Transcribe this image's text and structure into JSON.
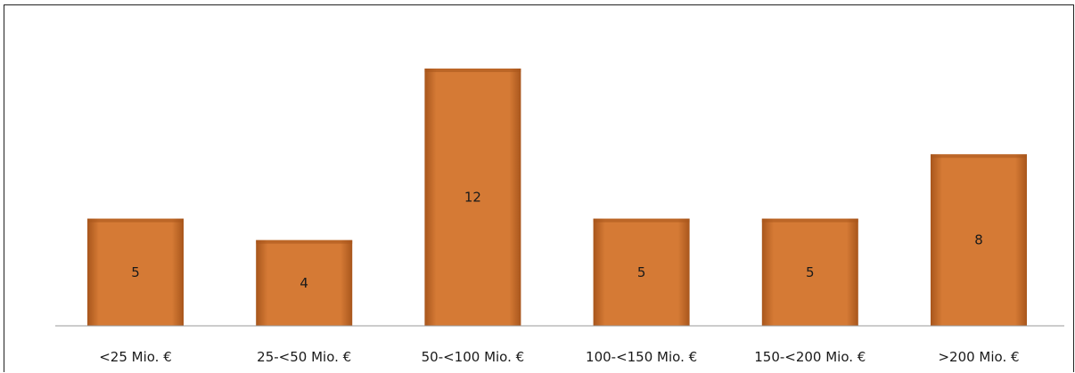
{
  "chart_data": {
    "type": "bar",
    "categories": [
      "<25 Mio. €",
      "25-<50 Mio. €",
      "50-<100 Mio. €",
      "100-<150 Mio. €",
      "150-<200 Mio. €",
      ">200 Mio. €"
    ],
    "values": [
      5,
      4,
      12,
      5,
      5,
      8
    ],
    "title": "",
    "xlabel": "",
    "ylabel": "",
    "ylim": [
      0,
      12
    ],
    "grid": false,
    "legend": "none",
    "colors": {
      "bar": "#d57a35",
      "bar_dark": "#a8561c",
      "bar_light": "#e59a5a",
      "axis": "#999999"
    }
  }
}
